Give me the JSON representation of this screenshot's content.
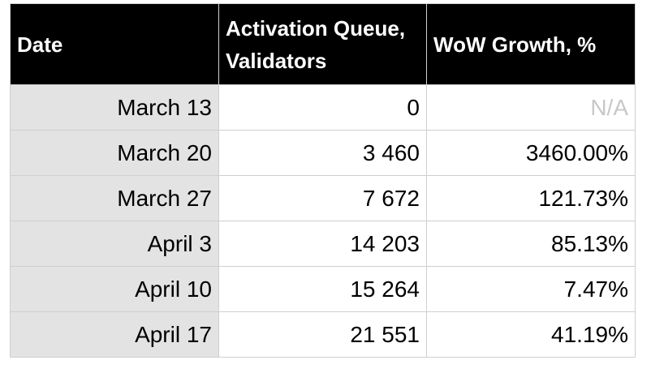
{
  "table": {
    "headers": [
      "Date",
      "Activation Queue, Validators",
      "WoW Growth, %"
    ],
    "rows": [
      {
        "date": "March 13",
        "queue": "0",
        "growth": "N/A"
      },
      {
        "date": "March 20",
        "queue": "3 460",
        "growth": "3460.00%"
      },
      {
        "date": "March 27",
        "queue": "7 672",
        "growth": "121.73%"
      },
      {
        "date": "April 3",
        "queue": "14 203",
        "growth": "85.13%"
      },
      {
        "date": "April 10",
        "queue": "15 264",
        "growth": "7.47%"
      },
      {
        "date": "April 17",
        "queue": "21 551",
        "growth": "41.19%"
      }
    ]
  },
  "colors": {
    "header_bg": "#000000",
    "header_text": "#ffffff",
    "date_cell_bg": "#e3e3e3",
    "grid_line": "#cfcfcf",
    "na_text": "#c8c8c8"
  }
}
